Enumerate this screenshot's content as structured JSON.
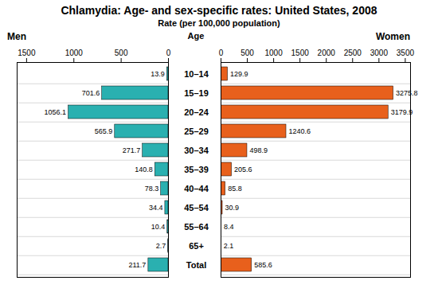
{
  "chart_data": {
    "type": "bar",
    "orientation": "horizontal",
    "title": "Chlamydia: Age- and sex-specific rates: United States, 2008",
    "subtitle": "Rate (per 100,000 population)",
    "ylabel": "Age",
    "categories": [
      "10–14",
      "15–19",
      "20–24",
      "25–29",
      "30–34",
      "35–39",
      "40–44",
      "45–54",
      "55–64",
      "65+",
      "Total"
    ],
    "series": [
      {
        "name": "Men",
        "color": "#2ab0b0",
        "values": [
          13.9,
          701.6,
          1056.1,
          565.9,
          271.7,
          140.8,
          78.3,
          34.4,
          10.4,
          2.7,
          211.7
        ],
        "xlim": [
          1600,
          0
        ],
        "xticks": [
          1500,
          1000,
          500,
          0
        ]
      },
      {
        "name": "Women",
        "color": "#e8601c",
        "values": [
          129.9,
          3275.8,
          3179.9,
          1240.6,
          498.9,
          205.6,
          85.8,
          30.9,
          8.4,
          2.1,
          585.6
        ],
        "xlim": [
          0,
          3600
        ],
        "xticks": [
          0,
          500,
          1000,
          1500,
          2000,
          2500,
          3000,
          3500
        ]
      }
    ],
    "data_labels": true,
    "grid": true
  }
}
